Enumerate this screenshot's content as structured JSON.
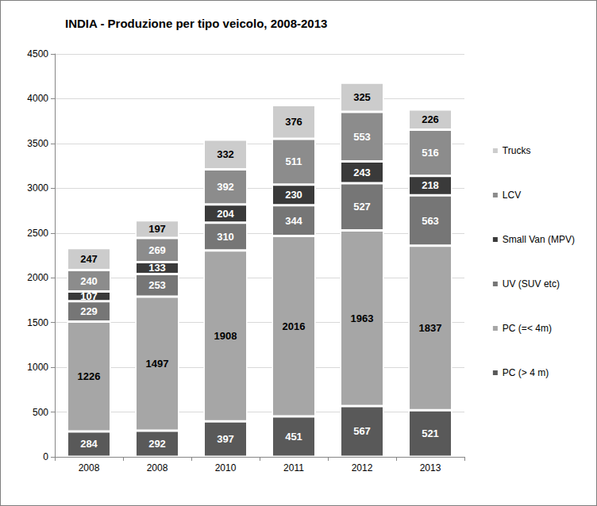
{
  "chart_data": {
    "type": "bar",
    "title": "INDIA - Produzione per tipo veicolo, 2008-2013",
    "categories": [
      "2008",
      "2008",
      "2010",
      "2011",
      "2012",
      "2013"
    ],
    "series": [
      {
        "name": "PC (> 4 m)",
        "color": "#595959",
        "values": [
          284,
          292,
          397,
          451,
          567,
          521
        ]
      },
      {
        "name": "PC (=< 4m)",
        "color": "#a6a6a6",
        "values": [
          1226,
          1497,
          1908,
          2016,
          1963,
          1837
        ]
      },
      {
        "name": "UV (SUV etc)",
        "color": "#767676",
        "values": [
          229,
          253,
          310,
          344,
          527,
          563
        ]
      },
      {
        "name": "Small Van (MPV)",
        "color": "#3a3a3a",
        "values": [
          107,
          133,
          204,
          230,
          243,
          218
        ]
      },
      {
        "name": "LCV",
        "color": "#8c8c8c",
        "values": [
          240,
          269,
          392,
          511,
          553,
          516
        ]
      },
      {
        "name": "Trucks",
        "color": "#cccccc",
        "values": [
          247,
          197,
          332,
          376,
          325,
          226
        ]
      }
    ],
    "ylim": [
      0,
      4500
    ],
    "yticks": [
      0,
      500,
      1000,
      1500,
      2000,
      2500,
      3000,
      3500,
      4000,
      4500
    ],
    "grid": true,
    "stacked": true,
    "data_labels": true,
    "legend": "right"
  }
}
